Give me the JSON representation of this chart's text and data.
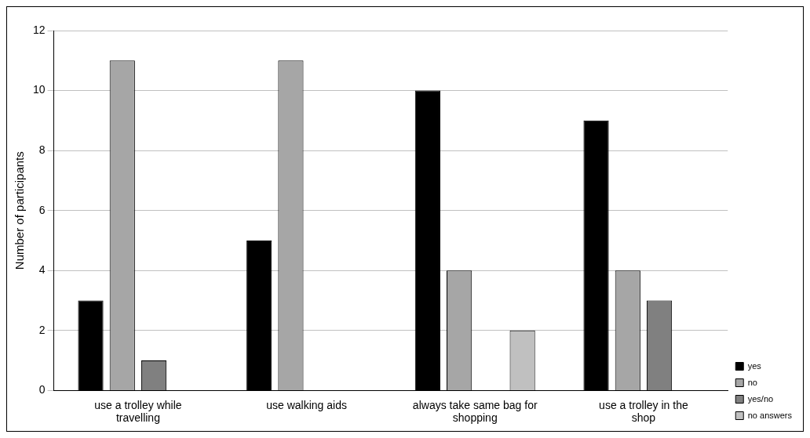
{
  "chart_data": {
    "type": "bar",
    "ylabel": "Number of participants",
    "categories": [
      "use a trolley while travelling",
      "use walking aids",
      "always take same bag for shopping",
      "use a trolley in the shop"
    ],
    "series": [
      {
        "name": "yes",
        "color": "#000000",
        "values": [
          3,
          5,
          10,
          9
        ]
      },
      {
        "name": "no",
        "color": "#a6a6a6",
        "values": [
          11,
          11,
          4,
          4
        ]
      },
      {
        "name": "yes/no",
        "color": "#808080",
        "values": [
          1,
          null,
          null,
          3
        ]
      },
      {
        "name": "no answers",
        "color": "#c0c0c0",
        "values": [
          null,
          null,
          2,
          null
        ]
      }
    ],
    "ylim": [
      0,
      12
    ],
    "yticks": [
      0,
      2,
      4,
      6,
      8,
      10,
      12
    ],
    "grid": "y",
    "legend": "bottom right"
  }
}
